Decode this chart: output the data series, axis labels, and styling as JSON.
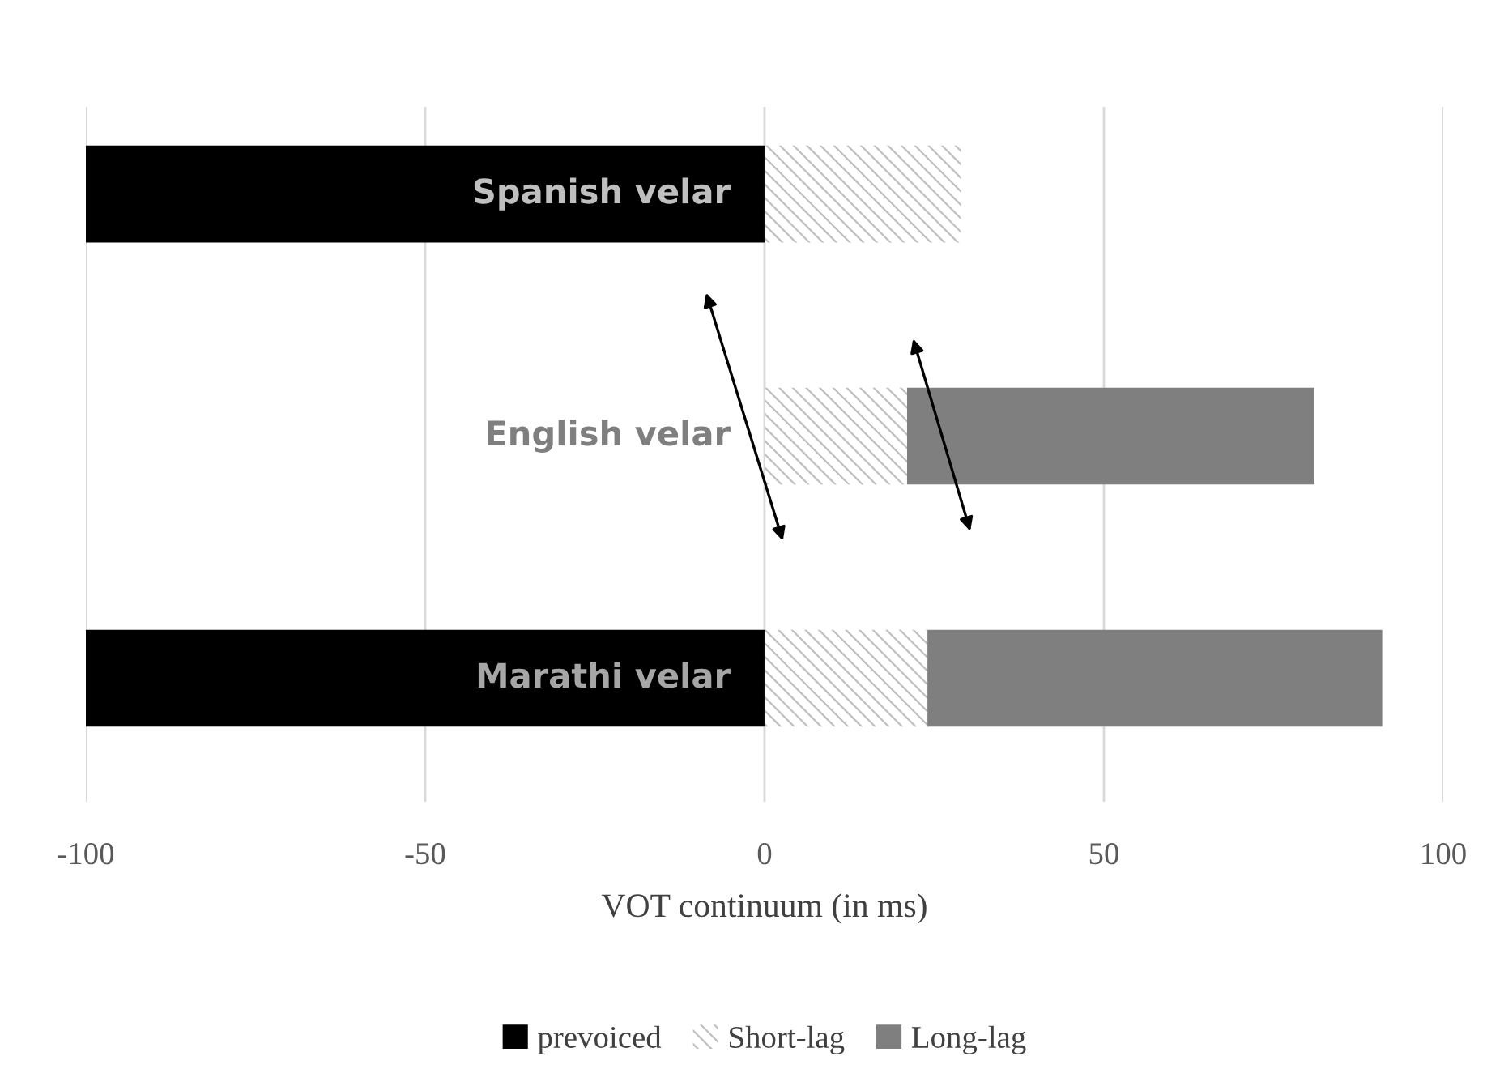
{
  "chart_data": {
    "type": "bar",
    "orientation": "horizontal",
    "stacked": true,
    "categories": [
      "Spanish velar",
      "English velar",
      "Marathi velar"
    ],
    "series": [
      {
        "name": "prevoiced",
        "color": "#000000",
        "values": [
          -100,
          null,
          -100
        ]
      },
      {
        "name": "Short-lag",
        "color": "#bfbfbf",
        "values": [
          29,
          21,
          24
        ]
      },
      {
        "name": "Long-lag",
        "color": "#7f7f7f",
        "values": [
          null,
          60,
          67
        ]
      }
    ],
    "xlabel": "VOT continuum (in ms)",
    "xlim": [
      -100,
      100
    ],
    "xticks": [
      -100,
      -50,
      0,
      50,
      100
    ],
    "grid": "x",
    "legend": "bottom",
    "tick_labels": "x"
  }
}
